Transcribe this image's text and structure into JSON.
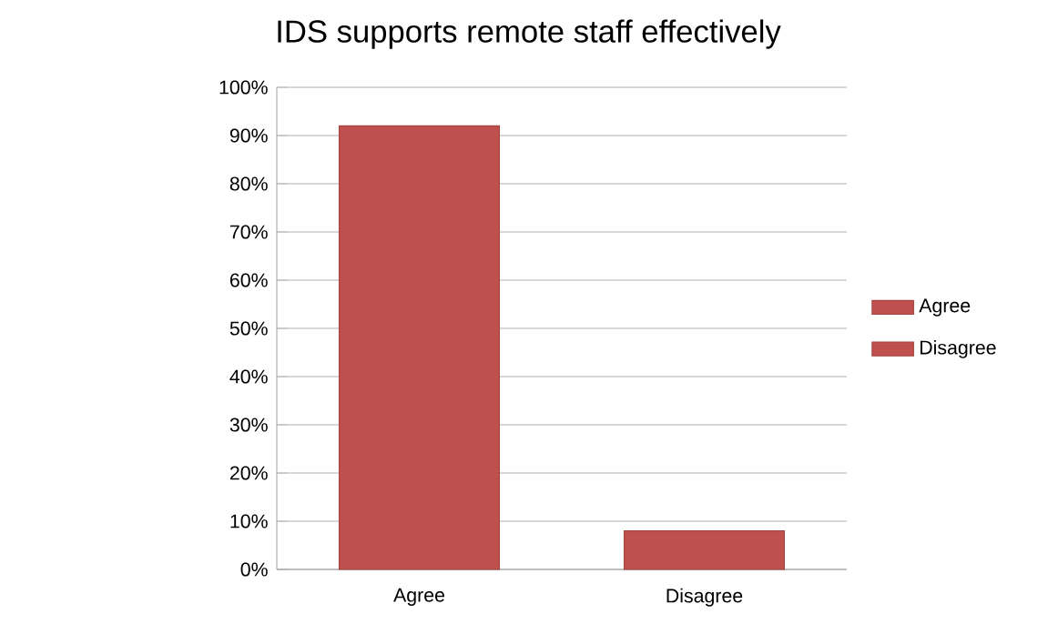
{
  "chart_data": {
    "type": "bar",
    "title": "IDS supports remote staff effectively",
    "categories": [
      "Agree",
      "Disagree"
    ],
    "series": [
      {
        "name": "Agree",
        "color": "#c0504d",
        "values": [
          92,
          null
        ]
      },
      {
        "name": "Disagree",
        "color": "#c0504d",
        "values": [
          null,
          8
        ]
      }
    ],
    "ylim": [
      0,
      100
    ],
    "yticks": [
      {
        "value": 0,
        "label": "0%"
      },
      {
        "value": 10,
        "label": "10%"
      },
      {
        "value": 20,
        "label": "20%"
      },
      {
        "value": 30,
        "label": "30%"
      },
      {
        "value": 40,
        "label": "40%"
      },
      {
        "value": 50,
        "label": "50%"
      },
      {
        "value": 60,
        "label": "60%"
      },
      {
        "value": 70,
        "label": "70%"
      },
      {
        "value": 80,
        "label": "80%"
      },
      {
        "value": 90,
        "label": "90%"
      },
      {
        "value": 100,
        "label": "100%"
      }
    ],
    "grid": "y",
    "legend": "right"
  }
}
